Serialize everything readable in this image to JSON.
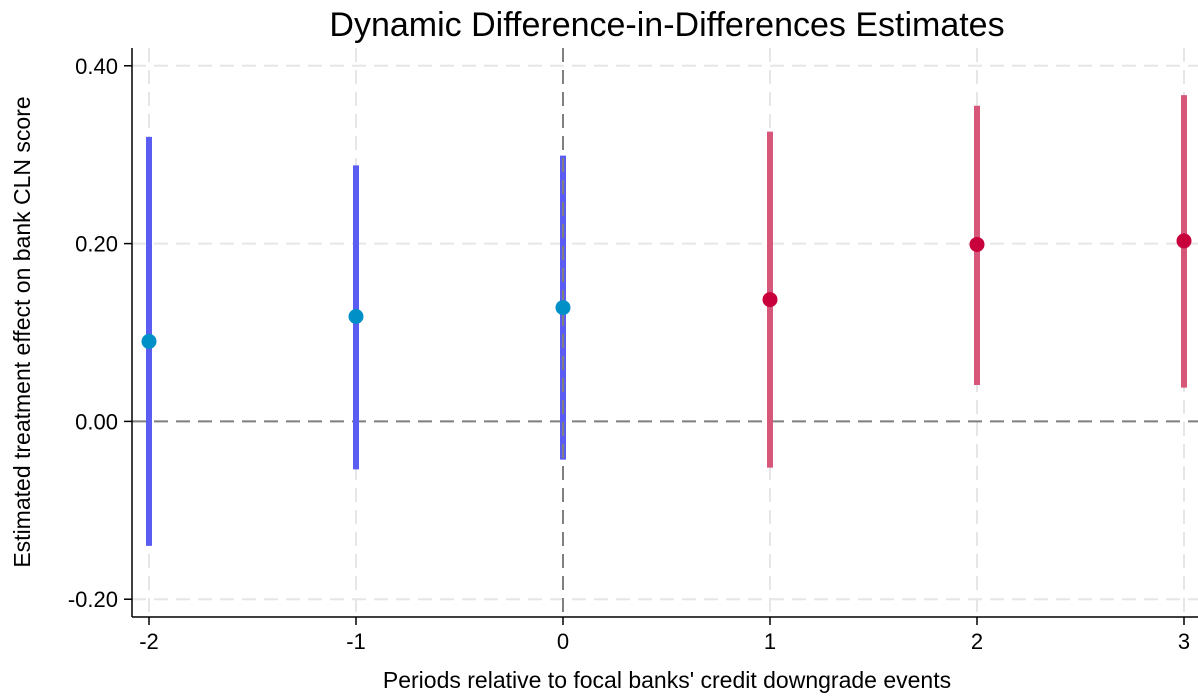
{
  "chart_data": {
    "type": "scatter",
    "title": "Dynamic Difference-in-Differences Estimates",
    "xlabel": "Periods relative to focal banks' credit downgrade events",
    "ylabel": "Estimated treatment effect on bank CLN score",
    "x_ticks": [
      "-2",
      "-1",
      "0",
      "1",
      "2",
      "3"
    ],
    "y_ticks": [
      "-0.20",
      "0.00",
      "0.20",
      "0.40"
    ],
    "xlim": [
      -2,
      3
    ],
    "ylim": [
      -0.22,
      0.42
    ],
    "grid": true,
    "reference_lines": {
      "x": 0,
      "y": 0
    },
    "series": [
      {
        "period": "pre",
        "point_color": "#0090c8",
        "ci_color": "#5a5cf2",
        "points": [
          {
            "x": -2,
            "y": 0.09,
            "ci_low": -0.14,
            "ci_high": 0.32
          },
          {
            "x": -1,
            "y": 0.118,
            "ci_low": -0.054,
            "ci_high": 0.288
          },
          {
            "x": 0,
            "y": 0.128,
            "ci_low": -0.043,
            "ci_high": 0.299
          }
        ]
      },
      {
        "period": "post",
        "point_color": "#c8003c",
        "ci_color": "#d6577a",
        "points": [
          {
            "x": 1,
            "y": 0.137,
            "ci_low": -0.052,
            "ci_high": 0.326
          },
          {
            "x": 2,
            "y": 0.199,
            "ci_low": 0.041,
            "ci_high": 0.355
          },
          {
            "x": 3,
            "y": 0.203,
            "ci_low": 0.038,
            "ci_high": 0.367
          }
        ]
      }
    ]
  }
}
